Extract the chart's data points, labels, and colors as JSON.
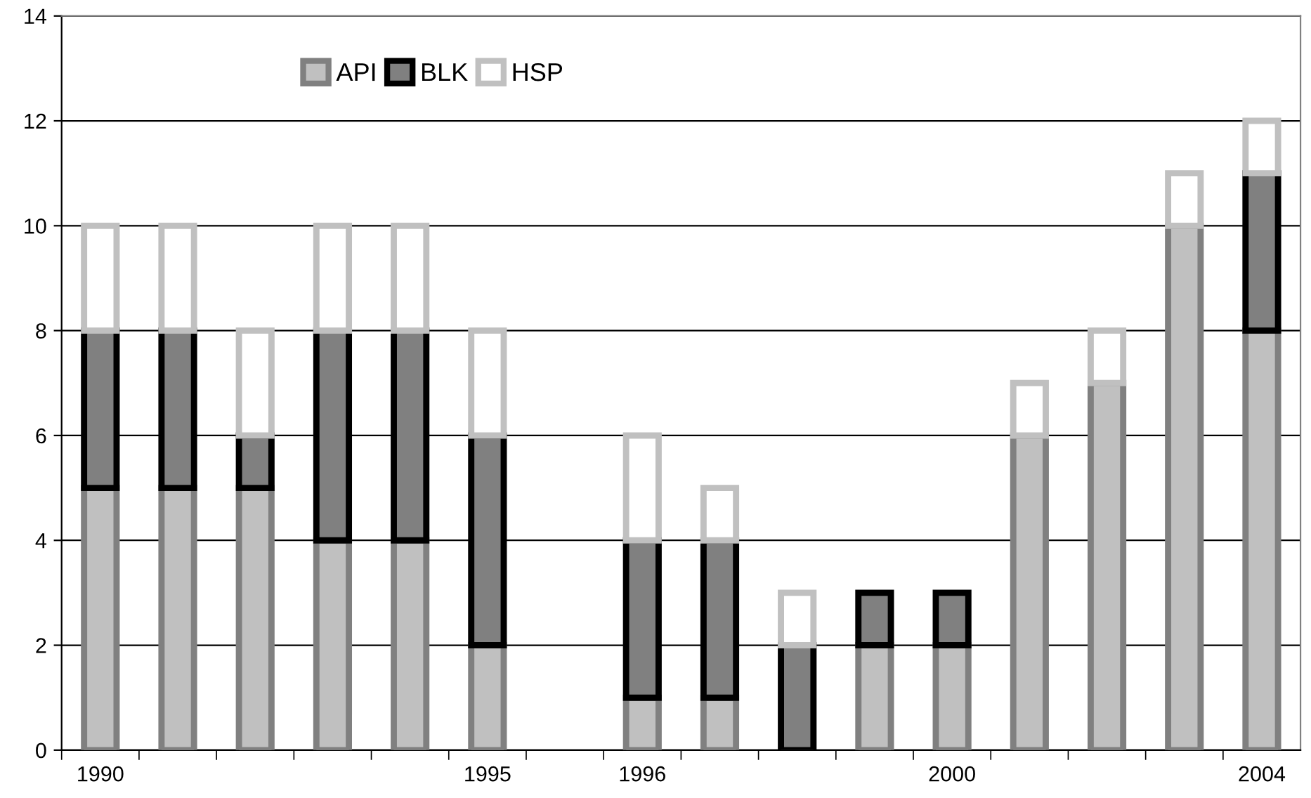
{
  "chart_data": {
    "type": "bar",
    "stacked": true,
    "categories": [
      "1990",
      null,
      null,
      null,
      null,
      "1995",
      null,
      "1996",
      null,
      null,
      null,
      "2000",
      null,
      null,
      null,
      "2004"
    ],
    "series": [
      {
        "name": "API",
        "color": "#c0c0c0",
        "values": [
          5,
          5,
          5,
          4,
          4,
          2,
          null,
          1,
          1,
          0,
          2,
          2,
          6,
          7,
          10,
          8
        ]
      },
      {
        "name": "BLK",
        "color": "#808080",
        "values": [
          3,
          3,
          1,
          4,
          4,
          4,
          null,
          3,
          3,
          2,
          1,
          1,
          0,
          0,
          0,
          3
        ]
      },
      {
        "name": "HSP",
        "color": "#ffffff",
        "values": [
          2,
          2,
          2,
          2,
          2,
          2,
          null,
          2,
          1,
          1,
          0,
          0,
          1,
          1,
          1,
          1
        ]
      }
    ],
    "ylim": [
      0,
      14
    ],
    "yticks": [
      0,
      2,
      4,
      6,
      8,
      10,
      12,
      14
    ],
    "grid": "y",
    "legend": "top"
  }
}
